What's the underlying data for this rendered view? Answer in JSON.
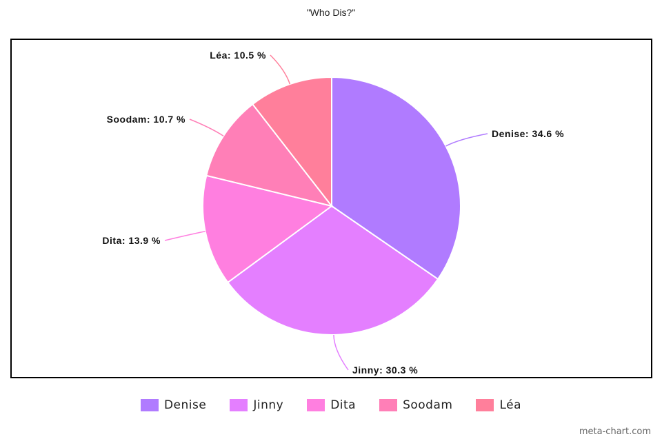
{
  "chart_data": {
    "type": "pie",
    "title": "\"Who Dis?\"",
    "categories": [
      "Denise",
      "Jinny",
      "Dita",
      "Soodam",
      "Léa"
    ],
    "values": [
      34.6,
      30.3,
      13.9,
      10.7,
      10.5
    ],
    "labels": [
      "Denise: 34.6 %",
      "Jinny: 30.3 %",
      "Dita: 13.9 %",
      "Soodam: 10.7 %",
      "Léa: 10.5 %"
    ],
    "colors": [
      "#b07bff",
      "#e47fff",
      "#ff7fe0",
      "#ff7fb7",
      "#ff7f9b"
    ],
    "legend_position": "bottom",
    "start_angle": "top",
    "direction": "clockwise"
  },
  "watermark": "meta-chart.com"
}
